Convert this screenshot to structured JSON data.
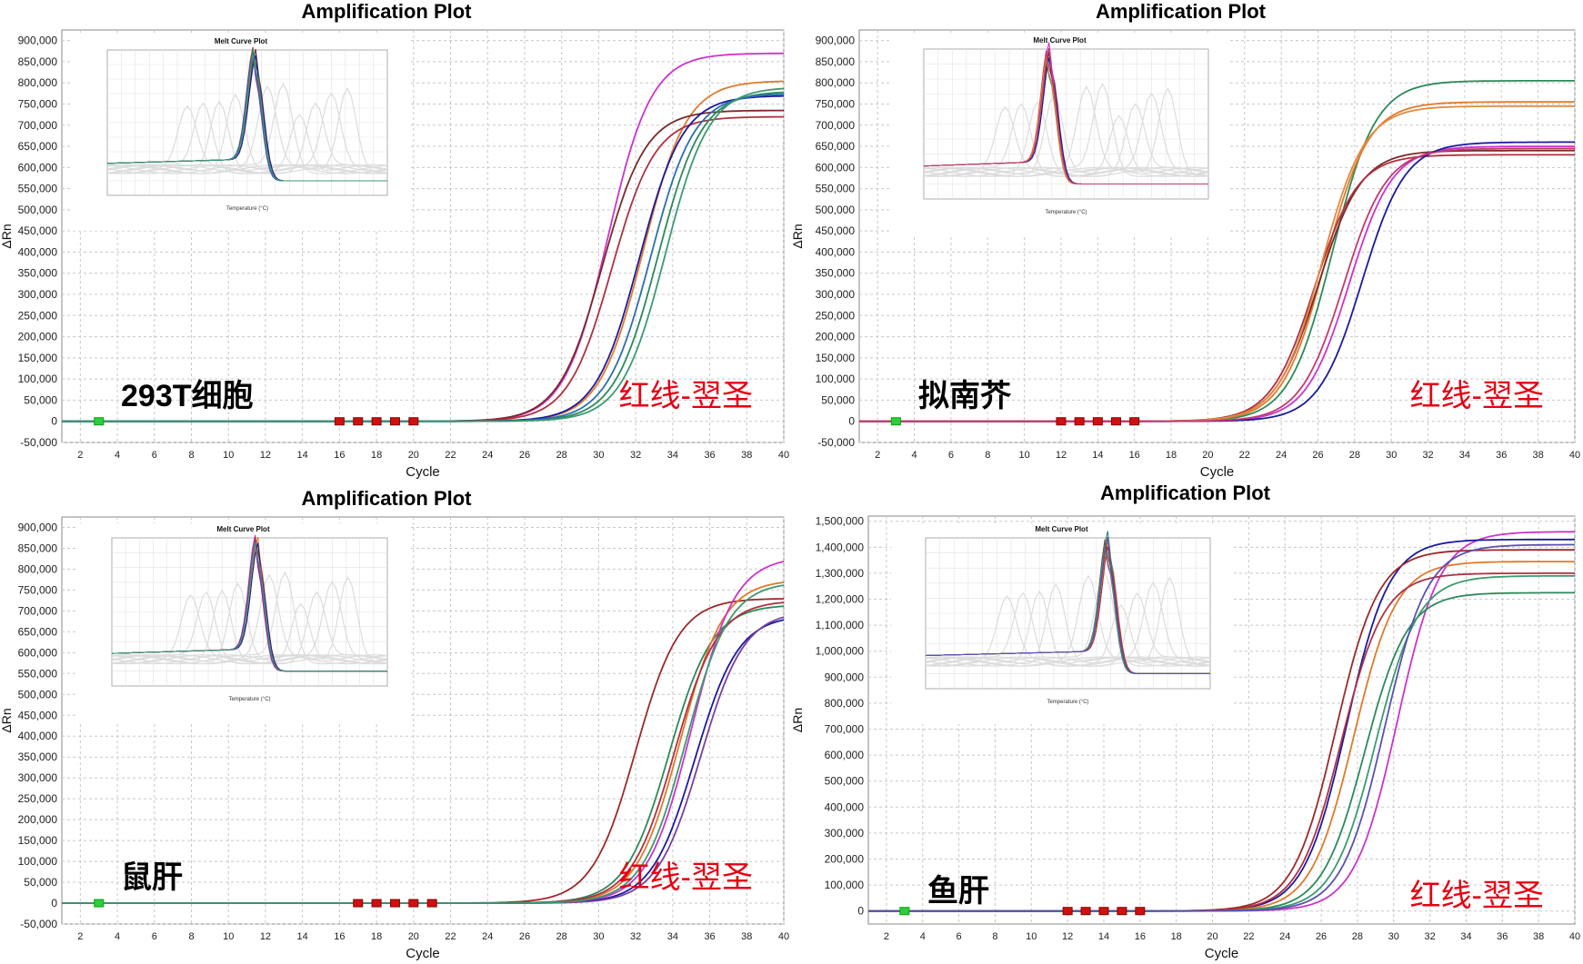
{
  "figure": {
    "label_color": "#e60012"
  },
  "chart_data": [
    {
      "type": "line",
      "title": "Amplification Plot",
      "xlabel": "Cycle",
      "ylabel": "ΔRn",
      "xlim": [
        1,
        40
      ],
      "ylim": [
        -50000,
        925000
      ],
      "xticks": [
        2,
        4,
        6,
        8,
        10,
        12,
        14,
        16,
        18,
        20,
        22,
        24,
        26,
        28,
        30,
        32,
        34,
        36,
        38,
        40
      ],
      "yticks": [
        -50000,
        0,
        50000,
        100000,
        150000,
        200000,
        250000,
        300000,
        350000,
        400000,
        450000,
        500000,
        550000,
        600000,
        650000,
        700000,
        750000,
        800000,
        850000,
        900000
      ],
      "ytick_labels": [
        "-50,000",
        "0",
        "50,000",
        "100,000",
        "150,000",
        "200,000",
        "250,000",
        "300,000",
        "350,000",
        "400,000",
        "450,000",
        "500,000",
        "550,000",
        "600,000",
        "650,000",
        "700,000",
        "750,000",
        "800,000",
        "850,000",
        "900,000"
      ],
      "grid": true,
      "sample_label": "293T细胞",
      "brand_label": "红线-翌圣",
      "inset": {
        "title": "Melt Curve Plot",
        "xlabel": "Temperature (°C)",
        "peak_temp": 78.5
      },
      "series": [
        {
          "color": "#cc33cc",
          "ct": 28.3,
          "plateau": 870000
        },
        {
          "color": "#e07a2a",
          "ct": 30.2,
          "plateau": 805000
        },
        {
          "color": "#7a2a2a",
          "ct": 28.0,
          "plateau": 735000
        },
        {
          "color": "#b03040",
          "ct": 28.5,
          "plateau": 720000
        },
        {
          "color": "#2a8a5a",
          "ct": 31.0,
          "plateau": 780000
        },
        {
          "color": "#1a1aa0",
          "ct": 30.0,
          "plateau": 770000
        },
        {
          "color": "#2a6fb0",
          "ct": 30.6,
          "plateau": 775000
        },
        {
          "color": "#3a9a70",
          "ct": 31.4,
          "plateau": 790000
        }
      ]
    },
    {
      "type": "line",
      "title": "Amplification Plot",
      "xlabel": "Cycle",
      "ylabel": "ΔRn",
      "xlim": [
        1,
        40
      ],
      "ylim": [
        -50000,
        925000
      ],
      "xticks": [
        2,
        4,
        6,
        8,
        10,
        12,
        14,
        16,
        18,
        20,
        22,
        24,
        26,
        28,
        30,
        32,
        34,
        36,
        38,
        40
      ],
      "yticks": [
        -50000,
        0,
        50000,
        100000,
        150000,
        200000,
        250000,
        300000,
        350000,
        400000,
        450000,
        500000,
        550000,
        600000,
        650000,
        700000,
        750000,
        800000,
        850000,
        900000
      ],
      "ytick_labels": [
        "-50,000",
        "0",
        "50,000",
        "100,000",
        "150,000",
        "200,000",
        "250,000",
        "300,000",
        "350,000",
        "400,000",
        "450,000",
        "500,000",
        "550,000",
        "600,000",
        "650,000",
        "700,000",
        "750,000",
        "800,000",
        "850,000",
        "900,000"
      ],
      "grid": true,
      "sample_label": "拟南芥",
      "brand_label": "红线-翌圣",
      "inset": {
        "title": "Melt Curve Plot",
        "xlabel": "Temperature (°C)",
        "peak_temp": 75.5
      },
      "series": [
        {
          "color": "#2a8a5a",
          "ct": 24.6,
          "plateau": 805000
        },
        {
          "color": "#e07a2a",
          "ct": 24.2,
          "plateau": 755000
        },
        {
          "color": "#7a2a2a",
          "ct": 23.8,
          "plateau": 640000
        },
        {
          "color": "#b03040",
          "ct": 23.6,
          "plateau": 630000
        },
        {
          "color": "#cc33cc",
          "ct": 25.5,
          "plateau": 650000
        },
        {
          "color": "#1a1aa0",
          "ct": 26.2,
          "plateau": 660000
        },
        {
          "color": "#e08a40",
          "ct": 24.0,
          "plateau": 745000
        },
        {
          "color": "#c03a70",
          "ct": 25.2,
          "plateau": 645000
        }
      ]
    },
    {
      "type": "line",
      "title": "Amplification Plot",
      "xlabel": "Cycle",
      "ylabel": "ΔRn",
      "xlim": [
        1,
        40
      ],
      "ylim": [
        -50000,
        925000
      ],
      "xticks": [
        2,
        4,
        6,
        8,
        10,
        12,
        14,
        16,
        18,
        20,
        22,
        24,
        26,
        28,
        30,
        32,
        34,
        36,
        38,
        40
      ],
      "yticks": [
        -50000,
        0,
        50000,
        100000,
        150000,
        200000,
        250000,
        300000,
        350000,
        400000,
        450000,
        500000,
        550000,
        600000,
        650000,
        700000,
        750000,
        800000,
        850000,
        900000
      ],
      "ytick_labels": [
        "-50,000",
        "0",
        "50,000",
        "100,000",
        "150,000",
        "200,000",
        "250,000",
        "300,000",
        "350,000",
        "400,000",
        "450,000",
        "500,000",
        "550,000",
        "600,000",
        "650,000",
        "700,000",
        "750,000",
        "800,000",
        "850,000",
        "900,000"
      ],
      "grid": true,
      "sample_label": "鼠肝",
      "brand_label": "红线-翌圣",
      "inset": {
        "title": "Melt Curve Plot",
        "xlabel": "Temperature (°C)",
        "peak_temp": 78.5
      },
      "series": [
        {
          "color": "#9a2a2a",
          "ct": 29.8,
          "plateau": 730000
        },
        {
          "color": "#2a8a5a",
          "ct": 31.6,
          "plateau": 715000
        },
        {
          "color": "#e07a2a",
          "ct": 32.2,
          "plateau": 775000
        },
        {
          "color": "#cc33cc",
          "ct": 32.8,
          "plateau": 830000
        },
        {
          "color": "#b03040",
          "ct": 31.9,
          "plateau": 725000
        },
        {
          "color": "#1a1aa0",
          "ct": 33.0,
          "plateau": 690000
        },
        {
          "color": "#7a40a0",
          "ct": 33.3,
          "plateau": 700000
        },
        {
          "color": "#3a9a70",
          "ct": 32.5,
          "plateau": 770000
        }
      ]
    },
    {
      "type": "line",
      "title": "Amplification Plot",
      "xlabel": "Cycle",
      "ylabel": "ΔRn",
      "xlim": [
        1,
        40
      ],
      "ylim": [
        -50000,
        1520000
      ],
      "xticks": [
        2,
        4,
        6,
        8,
        10,
        12,
        14,
        16,
        18,
        20,
        22,
        24,
        26,
        28,
        30,
        32,
        34,
        36,
        38,
        40
      ],
      "yticks": [
        0,
        100000,
        200000,
        300000,
        400000,
        500000,
        600000,
        700000,
        800000,
        900000,
        1000000,
        1100000,
        1200000,
        1300000,
        1400000,
        1500000
      ],
      "ytick_labels": [
        "0",
        "100,000",
        "200,000",
        "300,000",
        "400,000",
        "500,000",
        "600,000",
        "700,000",
        "800,000",
        "900,000",
        "1,000,000",
        "1,100,000",
        "1,200,000",
        "1,300,000",
        "1,400,000",
        "1,500,000"
      ],
      "grid": true,
      "sample_label": "鱼肝",
      "brand_label": "红线-翌圣",
      "inset": {
        "title": "Melt Curve Plot",
        "xlabel": "Temperature (°C)",
        "peak_temp": 82.5
      },
      "series": [
        {
          "color": "#cc33cc",
          "ct": 28.0,
          "plateau": 1460000
        },
        {
          "color": "#1a1aa0",
          "ct": 25.2,
          "plateau": 1430000
        },
        {
          "color": "#e07a2a",
          "ct": 25.6,
          "plateau": 1345000
        },
        {
          "color": "#9a2a2a",
          "ct": 24.6,
          "plateau": 1390000
        },
        {
          "color": "#2a8a5a",
          "ct": 26.2,
          "plateau": 1225000
        },
        {
          "color": "#b03040",
          "ct": 24.9,
          "plateau": 1300000
        },
        {
          "color": "#3a9a70",
          "ct": 26.8,
          "plateau": 1290000
        },
        {
          "color": "#5a50b0",
          "ct": 27.3,
          "plateau": 1410000
        }
      ]
    }
  ]
}
